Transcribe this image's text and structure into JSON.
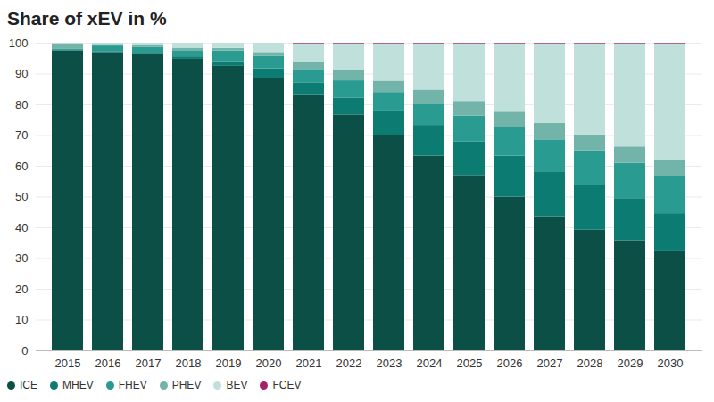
{
  "chart_data": {
    "type": "bar",
    "title": "Share of xEV in %",
    "stacked": true,
    "grid": true,
    "legend": "bottom",
    "categories": [
      "2015",
      "2016",
      "2017",
      "2018",
      "2019",
      "2020",
      "2021",
      "2022",
      "2023",
      "2024",
      "2025",
      "2026",
      "2027",
      "2028",
      "2029",
      "2030"
    ],
    "series": [
      {
        "name": "ICE",
        "color": "#0b4f47",
        "values": [
          97.5,
          97.0,
          96.3,
          94.8,
          92.5,
          88.7,
          83.0,
          76.7,
          70.0,
          63.3,
          57.0,
          50.0,
          43.6,
          39.2,
          35.8,
          32.2
        ]
      },
      {
        "name": "MHEV",
        "color": "#0c7b72",
        "values": [
          0.2,
          0.3,
          0.5,
          0.8,
          1.5,
          3.0,
          4.0,
          5.5,
          8.0,
          10.0,
          11.0,
          13.3,
          14.6,
          14.5,
          13.7,
          12.4
        ]
      },
      {
        "name": "FHEV",
        "color": "#2a9b91",
        "values": [
          0.3,
          1.8,
          1.8,
          1.8,
          3.5,
          4.0,
          4.5,
          5.6,
          6.0,
          6.7,
          8.3,
          9.3,
          10.4,
          11.3,
          11.5,
          12.2
        ]
      },
      {
        "name": "PHEV",
        "color": "#72b3aa",
        "values": [
          1.8,
          0.5,
          0.8,
          1.0,
          0.8,
          1.3,
          2.2,
          3.4,
          3.7,
          4.8,
          4.8,
          5.0,
          5.4,
          5.2,
          5.3,
          5.0
        ]
      },
      {
        "name": "BEV",
        "color": "#c0e0dc",
        "values": [
          0.2,
          0.4,
          0.6,
          1.6,
          1.7,
          3.0,
          6.1,
          8.6,
          12.1,
          15.0,
          18.7,
          22.2,
          25.8,
          29.6,
          33.5,
          38.0
        ]
      },
      {
        "name": "FCEV",
        "color": "#a3236b",
        "values": [
          0,
          0,
          0,
          0,
          0,
          0,
          0.2,
          0.2,
          0.2,
          0.2,
          0.2,
          0.2,
          0.2,
          0.2,
          0.2,
          0.2
        ]
      }
    ],
    "ylim": [
      0,
      100
    ],
    "yticks": [
      0,
      10,
      20,
      30,
      40,
      50,
      60,
      70,
      80,
      90,
      100
    ]
  }
}
